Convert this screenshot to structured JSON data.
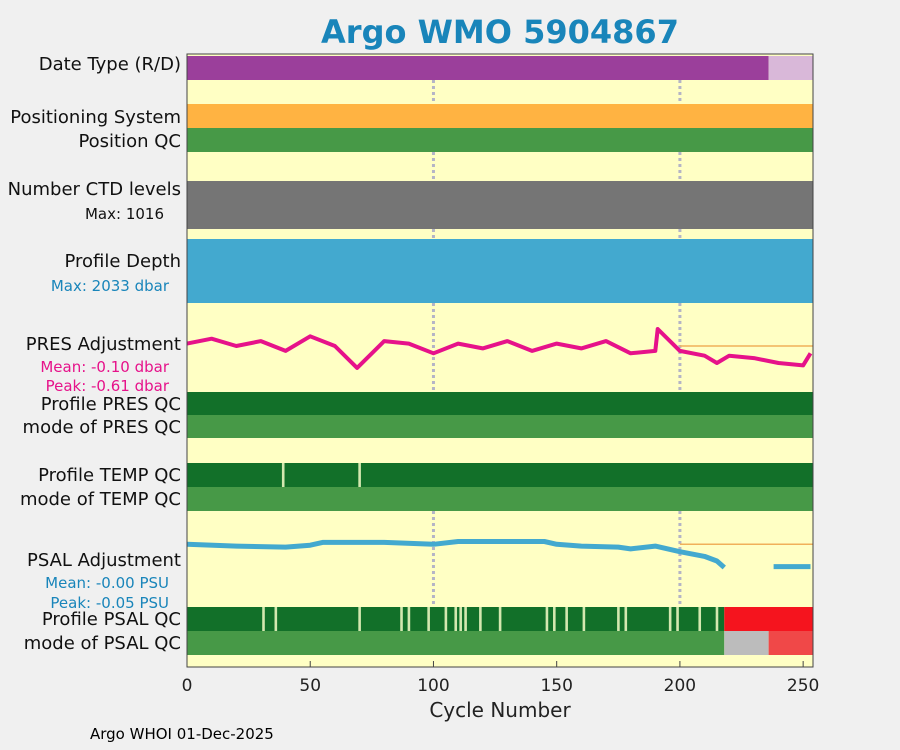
{
  "chart_data": {
    "type": "timeline",
    "title": "Argo WMO 5904867",
    "xlabel": "Cycle Number",
    "xlim": [
      0,
      254
    ],
    "xticks": [
      0,
      50,
      100,
      150,
      200,
      250
    ],
    "gridlines_x": [
      100,
      200
    ],
    "rows": [
      {
        "key": "date_type",
        "label": "Date Type (R/D)",
        "segments": [
          {
            "from": 0,
            "to": 236,
            "color": "#9b3f9b"
          },
          {
            "from": 236,
            "to": 254,
            "color": "#d9b8d9"
          }
        ]
      },
      {
        "key": "positioning_system",
        "label": "Positioning System",
        "segments": [
          {
            "from": 0,
            "to": 254,
            "color": "#ffb342"
          }
        ]
      },
      {
        "key": "position_qc",
        "label": "Position QC",
        "segments": [
          {
            "from": 0,
            "to": 254,
            "color": "#479947"
          }
        ]
      },
      {
        "key": "profile_pres_qc",
        "label": "Profile PRES QC",
        "segments": [
          {
            "from": 0,
            "to": 254,
            "color": "#127029"
          }
        ]
      },
      {
        "key": "mode_pres_qc",
        "label": "mode of PRES QC",
        "segments": [
          {
            "from": 0,
            "to": 254,
            "color": "#479947"
          }
        ]
      },
      {
        "key": "profile_temp_qc",
        "label": "Profile TEMP QC",
        "segments": [
          {
            "from": 0,
            "to": 254,
            "color": "#127029"
          }
        ],
        "gap_cycles": [
          39,
          70
        ]
      },
      {
        "key": "mode_temp_qc",
        "label": "mode of TEMP QC",
        "segments": [
          {
            "from": 0,
            "to": 254,
            "color": "#479947"
          }
        ]
      },
      {
        "key": "profile_psal_qc",
        "label": "Profile PSAL QC",
        "segments": [
          {
            "from": 0,
            "to": 218,
            "color": "#127029"
          },
          {
            "from": 218,
            "to": 254,
            "color": "#f5141e"
          }
        ],
        "gap_cycles": [
          31,
          36,
          70,
          87,
          90,
          98,
          105,
          109,
          111,
          113,
          119,
          127,
          146,
          149,
          154,
          161,
          175,
          178,
          196,
          199,
          208,
          215
        ]
      },
      {
        "key": "mode_psal_qc",
        "label": "mode of PSAL QC",
        "segments": [
          {
            "from": 0,
            "to": 218,
            "color": "#479947"
          },
          {
            "from": 218,
            "to": 236,
            "color": "#bcbcbc"
          },
          {
            "from": 236,
            "to": 254,
            "color": "#f04848"
          }
        ]
      }
    ],
    "ctd_levels": {
      "label": "Number CTD levels",
      "max_text": "Max: 1016",
      "color": "#757575"
    },
    "profile_depth": {
      "label": "Profile Depth",
      "max_text": "Max: 2033 dbar",
      "color": "#43a9cf"
    },
    "pres_adjustment": {
      "label": "PRES Adjustment",
      "mean_text": "Mean: -0.10 dbar",
      "peak_text": "Peak: -0.61 dbar",
      "color": "#e6128a",
      "ref_color": "#f0b05a",
      "ylim": [
        -0.7,
        0.7
      ],
      "x": [
        0,
        10,
        20,
        30,
        40,
        50,
        60,
        69,
        80,
        90,
        100,
        110,
        120,
        130,
        140,
        150,
        160,
        170,
        180,
        190,
        191,
        200,
        210,
        215,
        220,
        230,
        240,
        250,
        253
      ],
      "values": [
        0.05,
        0.15,
        0.0,
        0.1,
        -0.1,
        0.2,
        0.0,
        -0.45,
        0.1,
        0.05,
        -0.15,
        0.05,
        -0.05,
        0.1,
        -0.1,
        0.05,
        -0.05,
        0.1,
        -0.15,
        -0.1,
        0.35,
        -0.1,
        -0.2,
        -0.35,
        -0.2,
        -0.25,
        -0.35,
        -0.4,
        -0.15
      ]
    },
    "psal_adjustment": {
      "label": "PSAL Adjustment",
      "mean_text": "Mean: -0.00 PSU",
      "peak_text": "Peak: -0.05 PSU",
      "color": "#43a9cf",
      "ref_color": "#f0b05a",
      "ylim": [
        -0.06,
        0.01
      ],
      "x": [
        0,
        20,
        40,
        50,
        55,
        60,
        80,
        100,
        110,
        130,
        145,
        150,
        160,
        175,
        180,
        190,
        200,
        210,
        215,
        218
      ],
      "values": [
        0.0,
        -0.002,
        -0.003,
        -0.001,
        0.002,
        0.002,
        0.002,
        0.0,
        0.003,
        0.003,
        0.003,
        0.0,
        -0.002,
        -0.003,
        -0.005,
        -0.002,
        -0.008,
        -0.013,
        -0.018,
        -0.025
      ],
      "x2": [
        238,
        253
      ],
      "values2": [
        -0.024,
        -0.024
      ]
    },
    "footer": "Argo WHOI 01-Dec-2025"
  }
}
